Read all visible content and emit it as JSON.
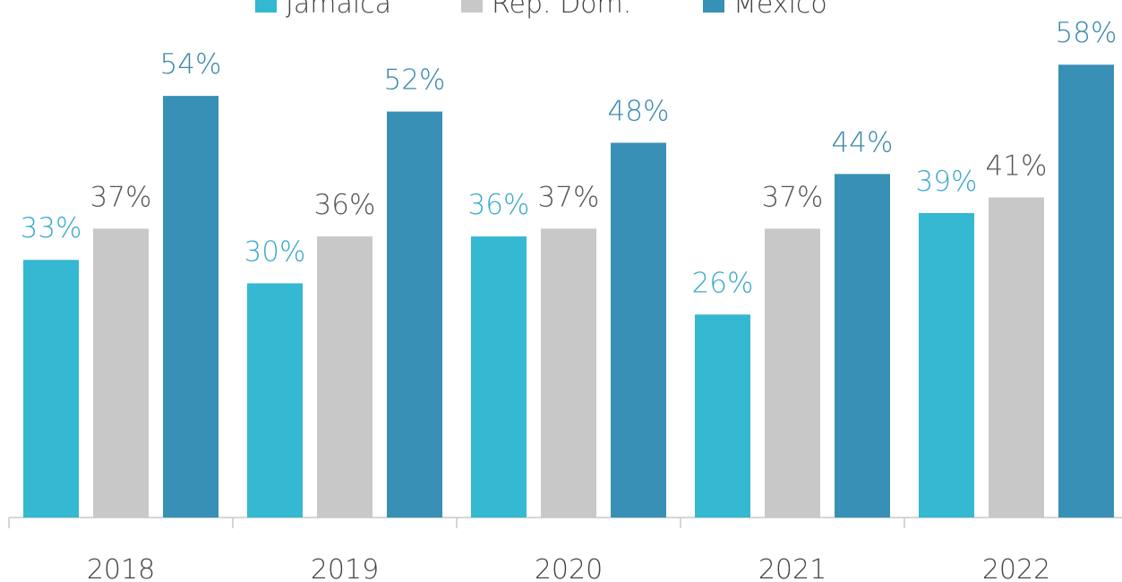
{
  "chart_data": {
    "type": "bar",
    "categories": [
      "2018",
      "2019",
      "2020",
      "2021",
      "2022"
    ],
    "series": [
      {
        "name": "Jamaica",
        "color": "#35b8d2",
        "label_color": "#3aa9cc",
        "values": [
          33,
          30,
          36,
          26,
          39
        ],
        "value_labels": [
          "33%",
          "30%",
          "36%",
          "26%",
          "39%"
        ]
      },
      {
        "name": "Rep. Dom.",
        "color": "#c8c8c8",
        "label_color": "#555555",
        "values": [
          37,
          36,
          37,
          37,
          41
        ],
        "value_labels": [
          "37%",
          "36%",
          "37%",
          "37%",
          "41%"
        ]
      },
      {
        "name": "México",
        "color": "#3990b7",
        "label_color": "#3a88ad",
        "values": [
          54,
          52,
          48,
          44,
          58
        ],
        "value_labels": [
          "54%",
          "52%",
          "48%",
          "44%",
          "58%"
        ]
      }
    ],
    "legend": "top"
  }
}
